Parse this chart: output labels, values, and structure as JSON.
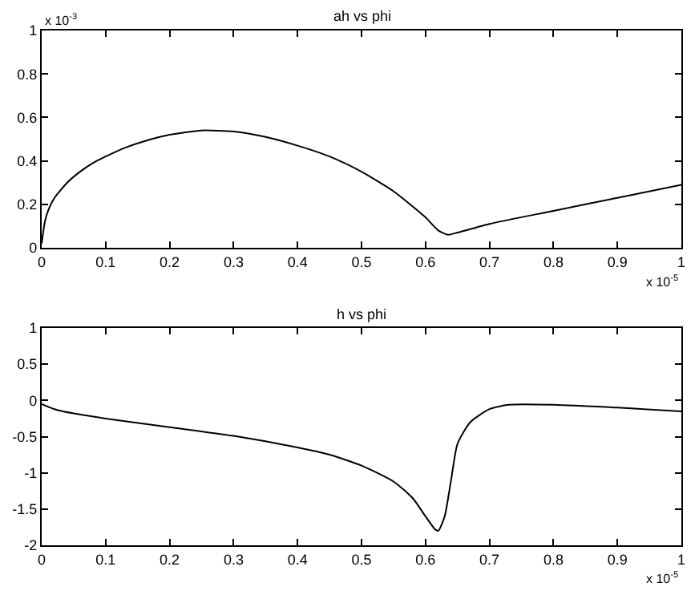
{
  "chart_data": [
    {
      "type": "line",
      "title": "ah vs phi",
      "x": [
        0,
        0.005,
        0.01,
        0.02,
        0.04,
        0.06,
        0.08,
        0.1,
        0.13,
        0.16,
        0.2,
        0.25,
        0.3,
        0.35,
        0.4,
        0.45,
        0.5,
        0.55,
        0.58,
        0.6,
        0.62,
        0.635,
        0.65,
        0.7,
        0.8,
        0.9,
        1.0
      ],
      "series": [
        {
          "color": "#000000",
          "values": [
            0.02,
            0.12,
            0.17,
            0.23,
            0.3,
            0.35,
            0.39,
            0.42,
            0.46,
            0.49,
            0.52,
            0.54,
            0.535,
            0.51,
            0.47,
            0.42,
            0.35,
            0.26,
            0.19,
            0.14,
            0.08,
            0.06,
            0.07,
            0.11,
            0.17,
            0.23,
            0.29
          ]
        }
      ],
      "xlim": [
        0,
        1
      ],
      "xticks": [
        0,
        0.1,
        0.2,
        0.3,
        0.4,
        0.5,
        0.6,
        0.7,
        0.8,
        0.9,
        1
      ],
      "ylim": [
        0,
        1
      ],
      "yticks": [
        0,
        0.2,
        0.4,
        0.6,
        0.8,
        1
      ],
      "annotations": [
        "x 10$^{-3}$",
        "x 10$^{-5}$"
      ],
      "grid": false,
      "line_style": "solid"
    },
    {
      "type": "line",
      "title": "h vs phi",
      "x": [
        0,
        0.02,
        0.05,
        0.1,
        0.2,
        0.3,
        0.4,
        0.45,
        0.5,
        0.55,
        0.58,
        0.6,
        0.615,
        0.62,
        0.63,
        0.64,
        0.65,
        0.67,
        0.7,
        0.73,
        0.8,
        0.9,
        1.0
      ],
      "series": [
        {
          "color": "#000000",
          "values": [
            -0.05,
            -0.12,
            -0.18,
            -0.25,
            -0.37,
            -0.49,
            -0.65,
            -0.75,
            -0.9,
            -1.12,
            -1.35,
            -1.6,
            -1.78,
            -1.8,
            -1.6,
            -1.1,
            -0.6,
            -0.3,
            -0.12,
            -0.06,
            -0.06,
            -0.1,
            -0.15
          ]
        }
      ],
      "xlim": [
        0,
        1
      ],
      "xticks": [
        0,
        0.1,
        0.2,
        0.3,
        0.4,
        0.5,
        0.6,
        0.7,
        0.8,
        0.9,
        1
      ],
      "ylim": [
        -2,
        1
      ],
      "yticks": [
        -2,
        -1.5,
        -1,
        -0.5,
        0,
        0.5,
        1
      ],
      "annotations": [
        "x 10$^{-5}$"
      ],
      "grid": false,
      "line_style": "solid"
    }
  ]
}
